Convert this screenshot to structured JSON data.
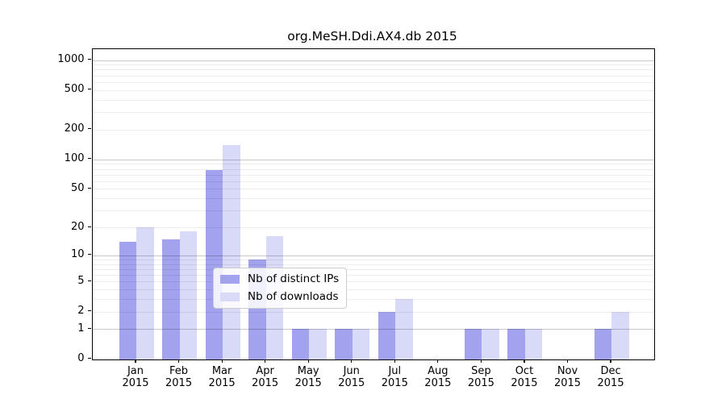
{
  "title": "org.MeSH.Ddi.AX4.db 2015",
  "chart_data": {
    "type": "bar",
    "categories": [
      "Jan 2015",
      "Feb 2015",
      "Mar 2015",
      "Apr 2015",
      "May 2015",
      "Jun 2015",
      "Jul 2015",
      "Aug 2015",
      "Sep 2015",
      "Oct 2015",
      "Nov 2015",
      "Dec 2015"
    ],
    "series": [
      {
        "name": "Nb of distinct IPs",
        "color": "#a2a2ee",
        "values": [
          14,
          15,
          78,
          9,
          1,
          1,
          2,
          0,
          1,
          1,
          0,
          1
        ]
      },
      {
        "name": "Nb of downloads",
        "color": "#d9d9f8",
        "values": [
          20,
          18,
          140,
          16,
          1,
          1,
          3,
          0,
          1,
          1,
          0,
          2
        ]
      }
    ],
    "title": "org.MeSH.Ddi.AX4.db 2015",
    "xlabel": "",
    "ylabel": "",
    "yscale": "log1p",
    "ylim": [
      0,
      1300
    ],
    "y_tick_values": [
      0,
      1,
      2,
      5,
      10,
      20,
      50,
      100,
      200,
      500,
      1000
    ],
    "y_major_grid": [
      1,
      10,
      100,
      1000
    ],
    "y_minor_grid": [
      2,
      3,
      4,
      5,
      6,
      7,
      8,
      9,
      20,
      30,
      40,
      50,
      60,
      70,
      80,
      90,
      200,
      300,
      400,
      500,
      600,
      700,
      800,
      900
    ],
    "grid": true,
    "legend_position": "inside lower-center",
    "bar_color_dark": "#a2a2ee",
    "bar_color_light": "#d9d9f8"
  }
}
